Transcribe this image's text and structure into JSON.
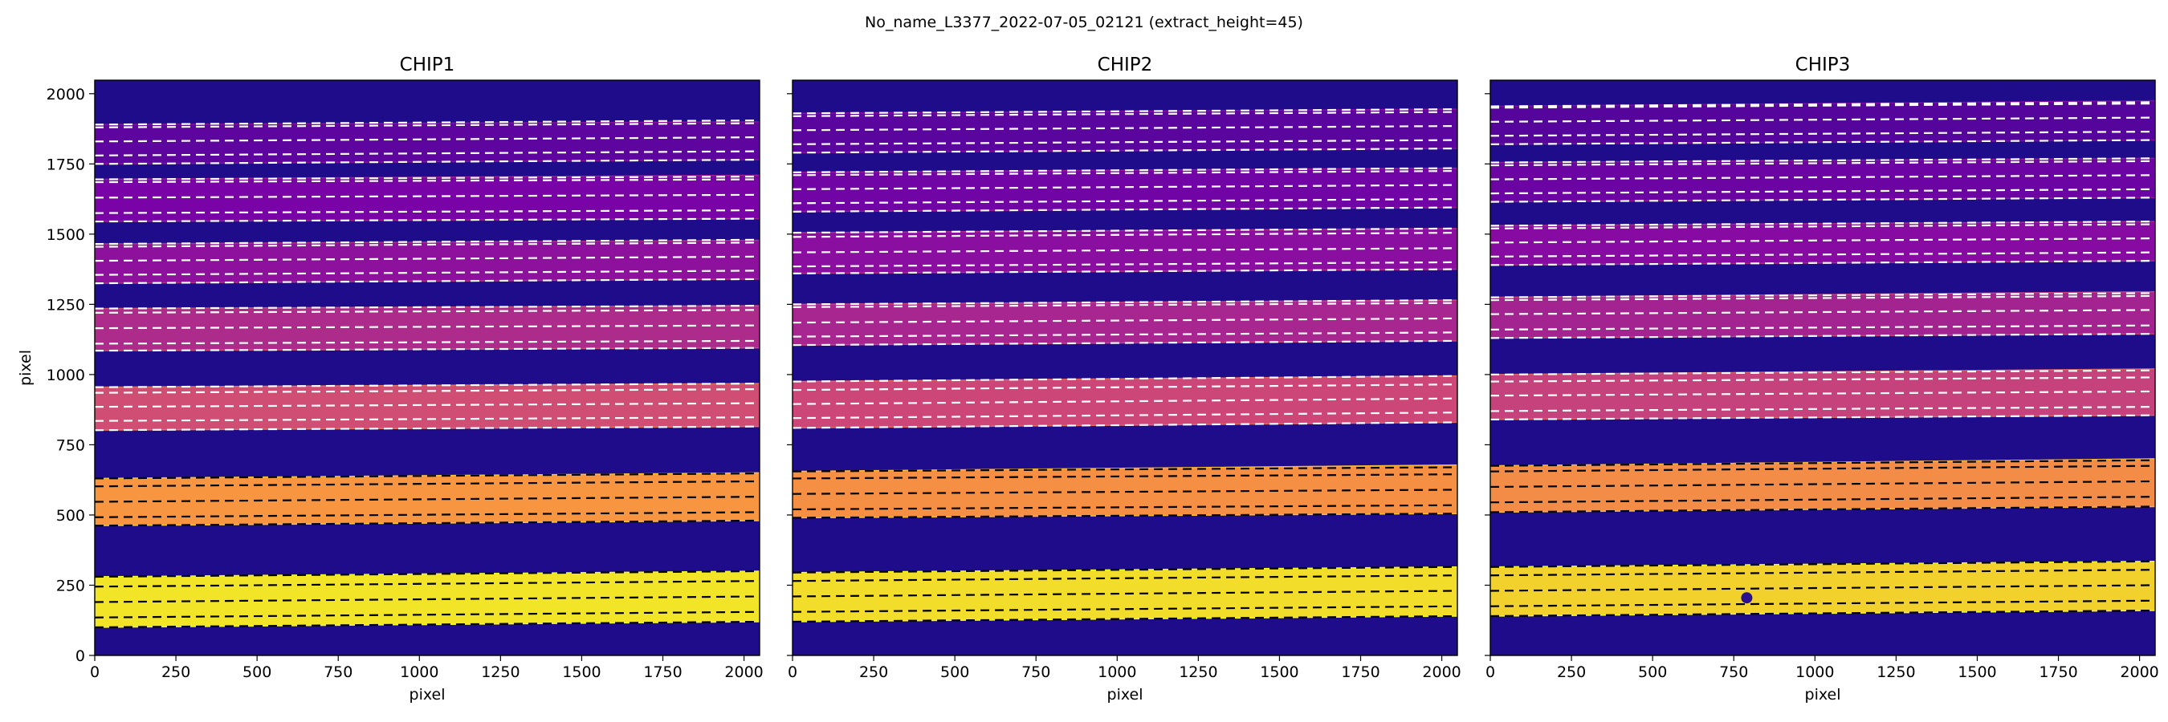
{
  "figure": {
    "suptitle": "No_name_L3377_2022-07-05_02121  (extract_height=45)"
  },
  "chart_data": [
    {
      "type": "heatmap",
      "title": "CHIP1",
      "xlabel": "pixel",
      "ylabel": "pixel",
      "xlim": [
        0,
        2048
      ],
      "ylim": [
        0,
        2048
      ],
      "xticks": [
        0,
        250,
        500,
        750,
        1000,
        1250,
        1500,
        1750,
        2000
      ],
      "yticks": [
        0,
        250,
        500,
        750,
        1000,
        1250,
        1500,
        1750,
        2000
      ],
      "colormap": "plasma",
      "background_color": "#1f0c8a",
      "orders": [
        {
          "y_bottom_left": 100,
          "y_bottom_right": 120,
          "y_top_left": 280,
          "y_top_right": 300,
          "intensity": 0.95,
          "traces": [
            135,
            190,
            245
          ]
        },
        {
          "y_bottom_left": 462,
          "y_bottom_right": 480,
          "y_top_left": 630,
          "y_top_right": 650,
          "intensity": 0.75,
          "traces": [
            492,
            547,
            602
          ]
        },
        {
          "y_bottom_left": 802,
          "y_bottom_right": 815,
          "y_top_left": 955,
          "y_top_right": 968,
          "intensity": 0.52,
          "traces": [
            835,
            885,
            935
          ]
        },
        {
          "y_bottom_left": 1085,
          "y_bottom_right": 1095,
          "y_top_left": 1235,
          "y_top_right": 1245,
          "intensity": 0.4,
          "traces": [
            1110,
            1165,
            1220
          ]
        },
        {
          "y_bottom_left": 1325,
          "y_bottom_right": 1340,
          "y_top_left": 1465,
          "y_top_right": 1478,
          "intensity": 0.3,
          "traces": [
            1355,
            1405,
            1455
          ]
        },
        {
          "y_bottom_left": 1545,
          "y_bottom_right": 1555,
          "y_top_left": 1695,
          "y_top_right": 1710,
          "intensity": 0.24,
          "traces": [
            1575,
            1630,
            1685
          ]
        },
        {
          "y_bottom_left": 1750,
          "y_bottom_right": 1765,
          "y_top_left": 1890,
          "y_top_right": 1900,
          "intensity": 0.18,
          "traces": [
            1780,
            1830,
            1880
          ]
        }
      ]
    },
    {
      "type": "heatmap",
      "title": "CHIP2",
      "xlabel": "pixel",
      "ylabel": "",
      "xlim": [
        0,
        2048
      ],
      "ylim": [
        0,
        2048
      ],
      "xticks": [
        0,
        250,
        500,
        750,
        1000,
        1250,
        1500,
        1750,
        2000
      ],
      "yticks": [
        0,
        250,
        500,
        750,
        1000,
        1250,
        1500,
        1750,
        2000
      ],
      "colormap": "plasma",
      "background_color": "#1f0c8a",
      "orders": [
        {
          "y_bottom_left": 120,
          "y_bottom_right": 140,
          "y_top_left": 295,
          "y_top_right": 315,
          "intensity": 0.93,
          "traces": [
            155,
            210,
            265
          ]
        },
        {
          "y_bottom_left": 490,
          "y_bottom_right": 505,
          "y_top_left": 655,
          "y_top_right": 678,
          "intensity": 0.73,
          "traces": [
            520,
            575,
            630
          ]
        },
        {
          "y_bottom_left": 810,
          "y_bottom_right": 830,
          "y_top_left": 975,
          "y_top_right": 995,
          "intensity": 0.5,
          "traces": [
            845,
            895,
            945
          ]
        },
        {
          "y_bottom_left": 1105,
          "y_bottom_right": 1120,
          "y_top_left": 1250,
          "y_top_right": 1265,
          "intensity": 0.38,
          "traces": [
            1135,
            1185,
            1240
          ]
        },
        {
          "y_bottom_left": 1360,
          "y_bottom_right": 1375,
          "y_top_left": 1505,
          "y_top_right": 1520,
          "intensity": 0.29,
          "traces": [
            1385,
            1435,
            1490
          ]
        },
        {
          "y_bottom_left": 1580,
          "y_bottom_right": 1595,
          "y_top_left": 1720,
          "y_top_right": 1735,
          "intensity": 0.22,
          "traces": [
            1610,
            1660,
            1710
          ]
        },
        {
          "y_bottom_left": 1790,
          "y_bottom_right": 1805,
          "y_top_left": 1930,
          "y_top_right": 1945,
          "intensity": 0.17,
          "traces": [
            1820,
            1870,
            1920
          ]
        }
      ]
    },
    {
      "type": "heatmap",
      "title": "CHIP3",
      "xlabel": "pixel",
      "ylabel": "",
      "xlim": [
        0,
        2048
      ],
      "ylim": [
        0,
        2048
      ],
      "xticks": [
        0,
        250,
        500,
        750,
        1000,
        1250,
        1500,
        1750,
        2000
      ],
      "yticks": [
        0,
        250,
        500,
        750,
        1000,
        1250,
        1500,
        1750,
        2000
      ],
      "colormap": "plasma",
      "background_color": "#1f0c8a",
      "orders": [
        {
          "y_bottom_left": 140,
          "y_bottom_right": 160,
          "y_top_left": 315,
          "y_top_right": 335,
          "intensity": 0.9,
          "traces": [
            175,
            230,
            285
          ]
        },
        {
          "y_bottom_left": 510,
          "y_bottom_right": 530,
          "y_top_left": 675,
          "y_top_right": 700,
          "intensity": 0.72,
          "traces": [
            545,
            600,
            655
          ]
        },
        {
          "y_bottom_left": 840,
          "y_bottom_right": 855,
          "y_top_left": 1000,
          "y_top_right": 1020,
          "intensity": 0.48,
          "traces": [
            870,
            925,
            975
          ]
        },
        {
          "y_bottom_left": 1130,
          "y_bottom_right": 1145,
          "y_top_left": 1275,
          "y_top_right": 1295,
          "intensity": 0.37,
          "traces": [
            1160,
            1215,
            1265
          ]
        },
        {
          "y_bottom_left": 1390,
          "y_bottom_right": 1405,
          "y_top_left": 1530,
          "y_top_right": 1545,
          "intensity": 0.28,
          "traces": [
            1420,
            1470,
            1520
          ]
        },
        {
          "y_bottom_left": 1615,
          "y_bottom_right": 1630,
          "y_top_left": 1755,
          "y_top_right": 1770,
          "intensity": 0.21,
          "traces": [
            1645,
            1695,
            1745
          ]
        },
        {
          "y_bottom_left": 1820,
          "y_bottom_right": 1835,
          "y_top_left": 1955,
          "y_top_right": 1975,
          "intensity": 0.16,
          "traces": [
            1850,
            1900,
            1950
          ]
        }
      ],
      "spots": [
        {
          "x": 790,
          "y": 205
        }
      ]
    }
  ]
}
